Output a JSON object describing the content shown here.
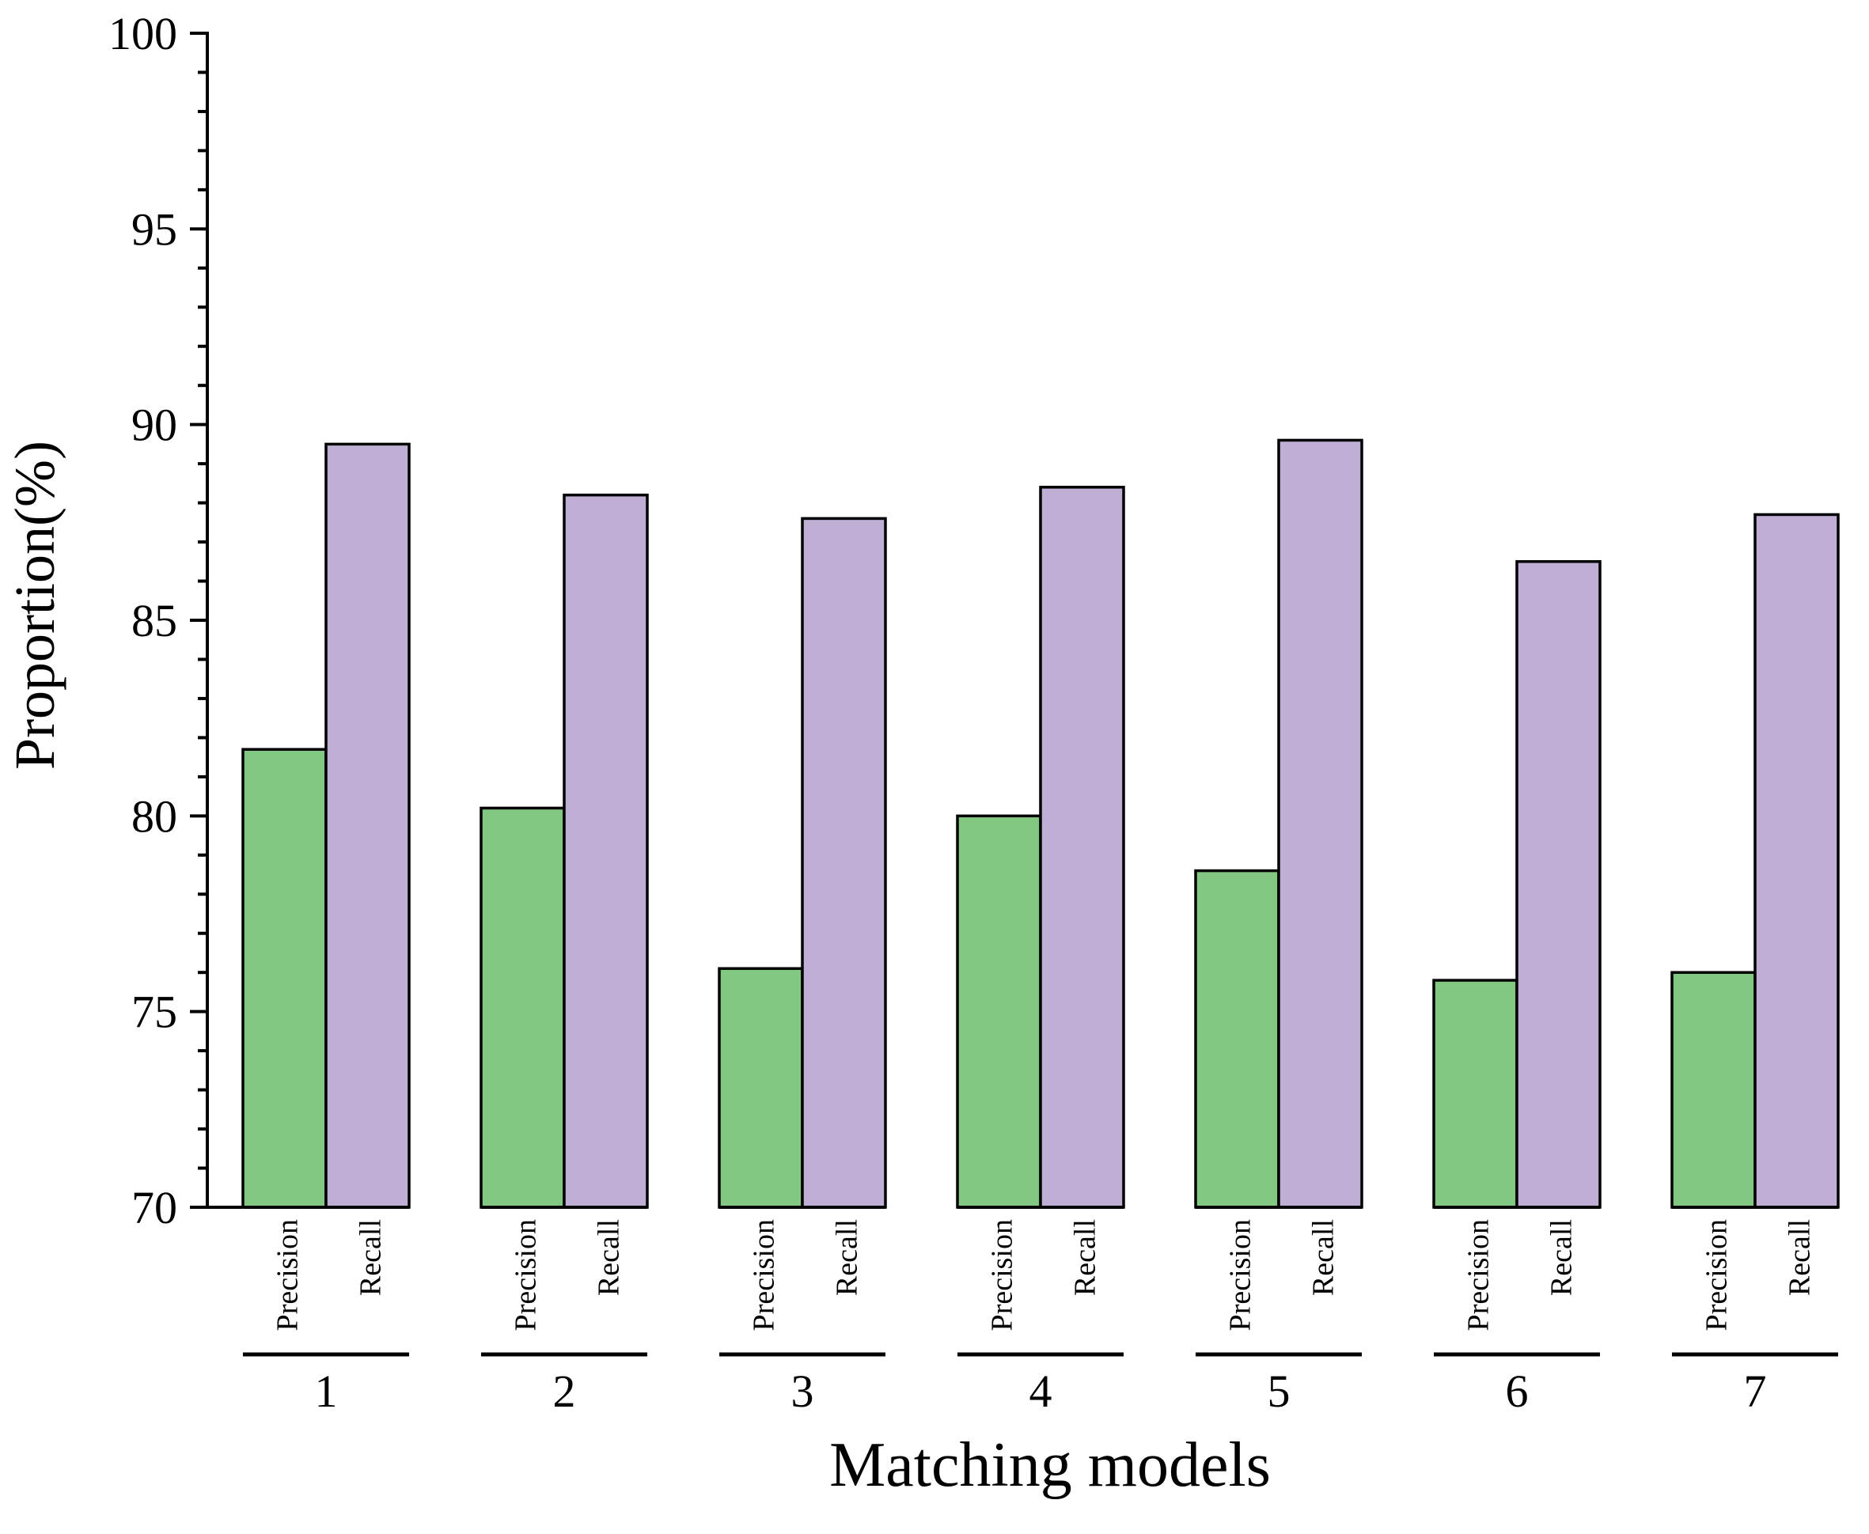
{
  "chart_data": {
    "type": "bar",
    "title": "",
    "xlabel": "Matching models",
    "ylabel": "Proportion(%)",
    "ylim": [
      70,
      100
    ],
    "y_major_ticks": [
      70,
      75,
      80,
      85,
      90,
      95,
      100
    ],
    "y_minor_step": 1,
    "categories": [
      "1",
      "2",
      "3",
      "4",
      "5",
      "6",
      "7"
    ],
    "series": [
      {
        "name": "Precision",
        "color": "#82c882",
        "values": [
          81.7,
          80.2,
          76.1,
          80.0,
          78.6,
          75.8,
          76.0
        ]
      },
      {
        "name": "Recall",
        "color": "#bfafd4",
        "values": [
          89.5,
          88.2,
          87.6,
          88.4,
          89.6,
          86.5,
          87.7
        ]
      }
    ],
    "grid": false,
    "legend": "none"
  }
}
